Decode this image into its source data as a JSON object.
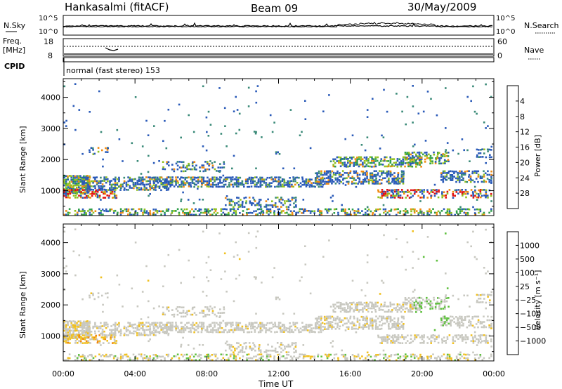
{
  "header": {
    "title": "Hankasalmi (fitACF)",
    "beam": "Beam 09",
    "date": "30/May/2009"
  },
  "status_panels": {
    "nsky_label": "N.Sky",
    "nsky_ticks": [
      "10^5",
      "10^0"
    ],
    "nsearch_label": "N.Search",
    "nsearch_ticks": [
      "10^5",
      "10^0"
    ],
    "freq_label_1": "Freq.",
    "freq_label_2": "[MHz]",
    "freq_ticks": [
      "18",
      "8"
    ],
    "nave_label": "Nave",
    "nave_ticks": [
      "60",
      "0"
    ],
    "cpid_label": "CPID",
    "cpid_text": "normal (fast stereo) 153"
  },
  "chart_data": [
    {
      "type": "heatmap",
      "name": "power",
      "ylabel": "Slant Range [km]",
      "xlabel": "",
      "ylim": [
        200,
        4600
      ],
      "yticks": [
        "1000",
        "2000",
        "3000",
        "4000"
      ],
      "xlim": [
        0,
        24
      ],
      "xticks": [
        "00:00",
        "04:00",
        "08:00",
        "12:00",
        "16:00",
        "20:00",
        "00:00"
      ],
      "colorbar": {
        "label": "Power [dB]",
        "ticks": [
          "4",
          "8",
          "12",
          "16",
          "20",
          "24",
          "28"
        ],
        "colors": [
          "#1010e0",
          "#2a5ab8",
          "#3a8a78",
          "#2e9e4a",
          "#90c020",
          "#f0c010",
          "#f08a10",
          "#e03010",
          "#e01010"
        ]
      }
    },
    {
      "type": "heatmap",
      "name": "velocity",
      "ylabel": "Slant Range [km]",
      "xlabel": "Time UT",
      "ylim": [
        200,
        4600
      ],
      "yticks": [
        "1000",
        "2000",
        "3000",
        "4000"
      ],
      "xlim": [
        0,
        24
      ],
      "xticks": [
        "00:00",
        "04:00",
        "08:00",
        "12:00",
        "16:00",
        "20:00",
        "00:00"
      ],
      "colorbar": {
        "label": "Velocity [m s⁻¹]",
        "ticks": [
          "1000",
          "500",
          "100",
          "25",
          "−25",
          "−100",
          "−500",
          "−1000"
        ],
        "colors": [
          "#2040c0",
          "#3a7ab0",
          "#2e9e4a",
          "#60c040",
          "#c8c8c0",
          "#f0c020",
          "#f08a10",
          "#e04010",
          "#e01010"
        ]
      }
    }
  ]
}
